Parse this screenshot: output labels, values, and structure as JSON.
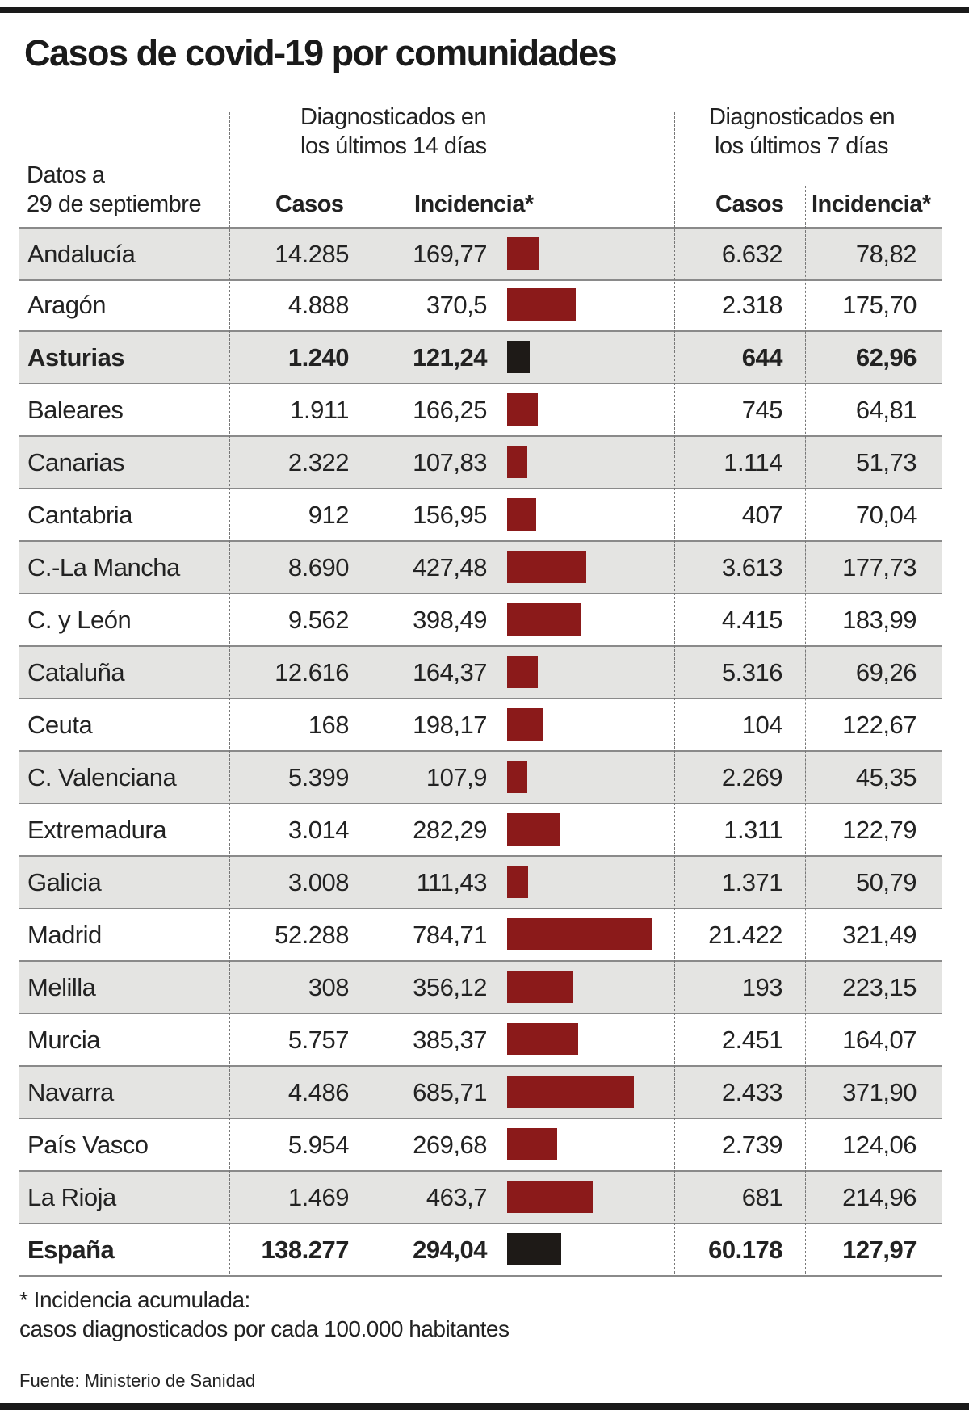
{
  "chart_data": {
    "type": "table",
    "title": "Casos de covid-19 por comunidades",
    "date_label": "Datos a 29 de septiembre",
    "group_14": "Diagnosticados en los últimos 14 días",
    "group_14_lines": [
      "Diagnosticados en",
      "los últimos 14 días"
    ],
    "group_7_lines": [
      "Diagnosticados en",
      "los últimos 7 días"
    ],
    "date_lines": [
      "Datos a",
      "29 de septiembre"
    ],
    "columns": {
      "casos_14": "Casos",
      "incid_14": "Incidencia*",
      "casos_7": "Casos",
      "incid_7": "Incidencia*"
    },
    "bar_color": "#8b1a1a",
    "highlight_bar_color": "#1e1a17",
    "rows": [
      {
        "name": "Andalucía",
        "casos_14": "14.285",
        "incid_14": "169,77",
        "incid_14_value": 169.77,
        "casos_7": "6.632",
        "incid_7": "78,82"
      },
      {
        "name": "Aragón",
        "casos_14": "4.888",
        "incid_14": "370,5",
        "incid_14_value": 370.5,
        "casos_7": "2.318",
        "incid_7": "175,70"
      },
      {
        "name": "Asturias",
        "casos_14": "1.240",
        "incid_14": "121,24",
        "incid_14_value": 121.24,
        "casos_7": "644",
        "incid_7": "62,96",
        "highlight": true
      },
      {
        "name": "Baleares",
        "casos_14": "1.911",
        "incid_14": "166,25",
        "incid_14_value": 166.25,
        "casos_7": "745",
        "incid_7": "64,81"
      },
      {
        "name": "Canarias",
        "casos_14": "2.322",
        "incid_14": "107,83",
        "incid_14_value": 107.83,
        "casos_7": "1.114",
        "incid_7": "51,73"
      },
      {
        "name": "Cantabria",
        "casos_14": "912",
        "incid_14": "156,95",
        "incid_14_value": 156.95,
        "casos_7": "407",
        "incid_7": "70,04"
      },
      {
        "name": "C.-La Mancha",
        "casos_14": "8.690",
        "incid_14": "427,48",
        "incid_14_value": 427.48,
        "casos_7": "3.613",
        "incid_7": "177,73"
      },
      {
        "name": "C. y León",
        "casos_14": "9.562",
        "incid_14": "398,49",
        "incid_14_value": 398.49,
        "casos_7": "4.415",
        "incid_7": "183,99"
      },
      {
        "name": "Cataluña",
        "casos_14": "12.616",
        "incid_14": "164,37",
        "incid_14_value": 164.37,
        "casos_7": "5.316",
        "incid_7": "69,26"
      },
      {
        "name": "Ceuta",
        "casos_14": "168",
        "incid_14": "198,17",
        "incid_14_value": 198.17,
        "casos_7": "104",
        "incid_7": "122,67"
      },
      {
        "name": "C. Valenciana",
        "casos_14": "5.399",
        "incid_14": "107,9",
        "incid_14_value": 107.9,
        "casos_7": "2.269",
        "incid_7": "45,35"
      },
      {
        "name": "Extremadura",
        "casos_14": "3.014",
        "incid_14": "282,29",
        "incid_14_value": 282.29,
        "casos_7": "1.311",
        "incid_7": "122,79"
      },
      {
        "name": "Galicia",
        "casos_14": "3.008",
        "incid_14": "111,43",
        "incid_14_value": 111.43,
        "casos_7": "1.371",
        "incid_7": "50,79"
      },
      {
        "name": "Madrid",
        "casos_14": "52.288",
        "incid_14": "784,71",
        "incid_14_value": 784.71,
        "casos_7": "21.422",
        "incid_7": "321,49"
      },
      {
        "name": "Melilla",
        "casos_14": "308",
        "incid_14": "356,12",
        "incid_14_value": 356.12,
        "casos_7": "193",
        "incid_7": "223,15"
      },
      {
        "name": "Murcia",
        "casos_14": "5.757",
        "incid_14": "385,37",
        "incid_14_value": 385.37,
        "casos_7": "2.451",
        "incid_7": "164,07"
      },
      {
        "name": "Navarra",
        "casos_14": "4.486",
        "incid_14": "685,71",
        "incid_14_value": 685.71,
        "casos_7": "2.433",
        "incid_7": "371,90"
      },
      {
        "name": "País Vasco",
        "casos_14": "5.954",
        "incid_14": "269,68",
        "incid_14_value": 269.68,
        "casos_7": "2.739",
        "incid_7": "124,06"
      },
      {
        "name": "La Rioja",
        "casos_14": "1.469",
        "incid_14": "463,7",
        "incid_14_value": 463.7,
        "casos_7": "681",
        "incid_7": "214,96"
      },
      {
        "name": "España",
        "casos_14": "138.277",
        "incid_14": "294,04",
        "incid_14_value": 294.04,
        "casos_7": "60.178",
        "incid_7": "127,97",
        "highlight": true,
        "total": true
      }
    ],
    "footnote_lines": [
      "* Incidencia acumulada:",
      "casos diagnosticados por cada 100.000 habitantes"
    ],
    "source": "Fuente: Ministerio de Sanidad"
  }
}
